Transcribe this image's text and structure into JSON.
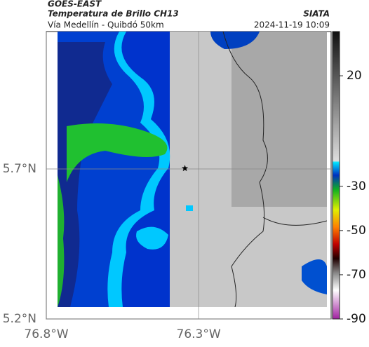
{
  "header": {
    "source": "GOES-EAST",
    "title": "Temperatura de Brillo CH13",
    "subtitle": "Vía Medellín - Quibdó 50km",
    "brand": "SIATA",
    "datetime": "2024-11-19 10:09"
  },
  "map": {
    "xlim": [
      -76.8,
      -75.865
    ],
    "ylim": [
      5.2,
      6.158
    ],
    "xticks": [
      {
        "value": -76.8,
        "label": "76.8°W"
      },
      {
        "value": -76.3,
        "label": "76.3°W"
      }
    ],
    "yticks": [
      {
        "value": 5.7,
        "label": "5.7°N"
      },
      {
        "value": 5.2,
        "label": "5.2°N"
      }
    ],
    "grid": true,
    "marker": {
      "lon": -76.345,
      "lat": 5.702
    }
  },
  "colorbar": {
    "lim": [
      40,
      -90
    ],
    "ticks": [
      20,
      -30,
      -50,
      -70,
      -90
    ]
  }
}
